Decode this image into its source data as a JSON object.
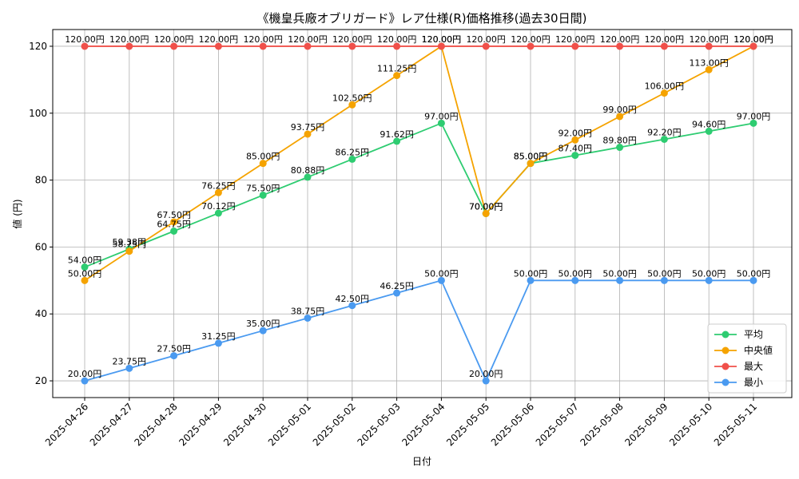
{
  "chart_data": {
    "type": "line",
    "title": "《機皇兵廠オブリガード》レア仕様(R)価格推移(過去30日間)",
    "xlabel": "日付",
    "ylabel": "値 (円)",
    "ylim": [
      15,
      125
    ],
    "yticks": [
      20,
      40,
      60,
      80,
      100,
      120
    ],
    "grid": true,
    "legend_position": "bottom-right",
    "x": [
      "2025-04-26",
      "2025-04-27",
      "2025-04-28",
      "2025-04-29",
      "2025-04-30",
      "2025-05-01",
      "2025-05-02",
      "2025-05-03",
      "2025-05-04",
      "2025-05-05",
      "2025-05-06",
      "2025-05-07",
      "2025-05-08",
      "2025-05-09",
      "2025-05-10",
      "2025-05-11"
    ],
    "series": [
      {
        "name": "平均",
        "color": "#2ecc71",
        "values": [
          54.0,
          59.38,
          64.75,
          70.12,
          75.5,
          80.88,
          86.25,
          91.62,
          97.0,
          70.0,
          85.0,
          87.4,
          89.8,
          92.2,
          94.6,
          97.0
        ],
        "labels": [
          "54.00円",
          "59.38円",
          "64.75円",
          "70.12円",
          "75.50円",
          "80.88円",
          "86.25円",
          "91.62円",
          "97.00円",
          "70.00円",
          "85.00円",
          "87.40円",
          "89.80円",
          "92.20円",
          "94.60円",
          "97.00円"
        ]
      },
      {
        "name": "中央値",
        "color": "#f5a300",
        "values": [
          50.0,
          58.75,
          67.5,
          76.25,
          85.0,
          93.75,
          102.5,
          111.25,
          120.0,
          70.0,
          85.0,
          92.0,
          99.0,
          106.0,
          113.0,
          120.0
        ],
        "labels": [
          "50.00円",
          "58.75円",
          "67.50円",
          "76.25円",
          "85.00円",
          "93.75円",
          "102.50円",
          "111.25円",
          "120.00円",
          "70.00円",
          "85.00円",
          "92.00円",
          "99.00円",
          "106.00円",
          "113.00円",
          "120.00円"
        ]
      },
      {
        "name": "最大",
        "color": "#f0504a",
        "values": [
          120,
          120,
          120,
          120,
          120,
          120,
          120,
          120,
          120,
          120,
          120,
          120,
          120,
          120,
          120,
          120
        ],
        "labels": [
          "120.00円",
          "120.00円",
          "120.00円",
          "120.00円",
          "120.00円",
          "120.00円",
          "120.00円",
          "120.00円",
          "120.00円",
          "120.00円",
          "120.00円",
          "120.00円",
          "120.00円",
          "120.00円",
          "120.00円",
          "120.00円"
        ]
      },
      {
        "name": "最小",
        "color": "#4a9af0",
        "values": [
          20.0,
          23.75,
          27.5,
          31.25,
          35.0,
          38.75,
          42.5,
          46.25,
          50.0,
          20.0,
          50.0,
          50.0,
          50.0,
          50.0,
          50.0,
          50.0
        ],
        "labels": [
          "20.00円",
          "23.75円",
          "27.50円",
          "31.25円",
          "35.00円",
          "38.75円",
          "42.50円",
          "46.25円",
          "50.00円",
          "20.00円",
          "50.00円",
          "50.00円",
          "50.00円",
          "50.00円",
          "50.00円",
          "50.00円"
        ]
      }
    ]
  }
}
